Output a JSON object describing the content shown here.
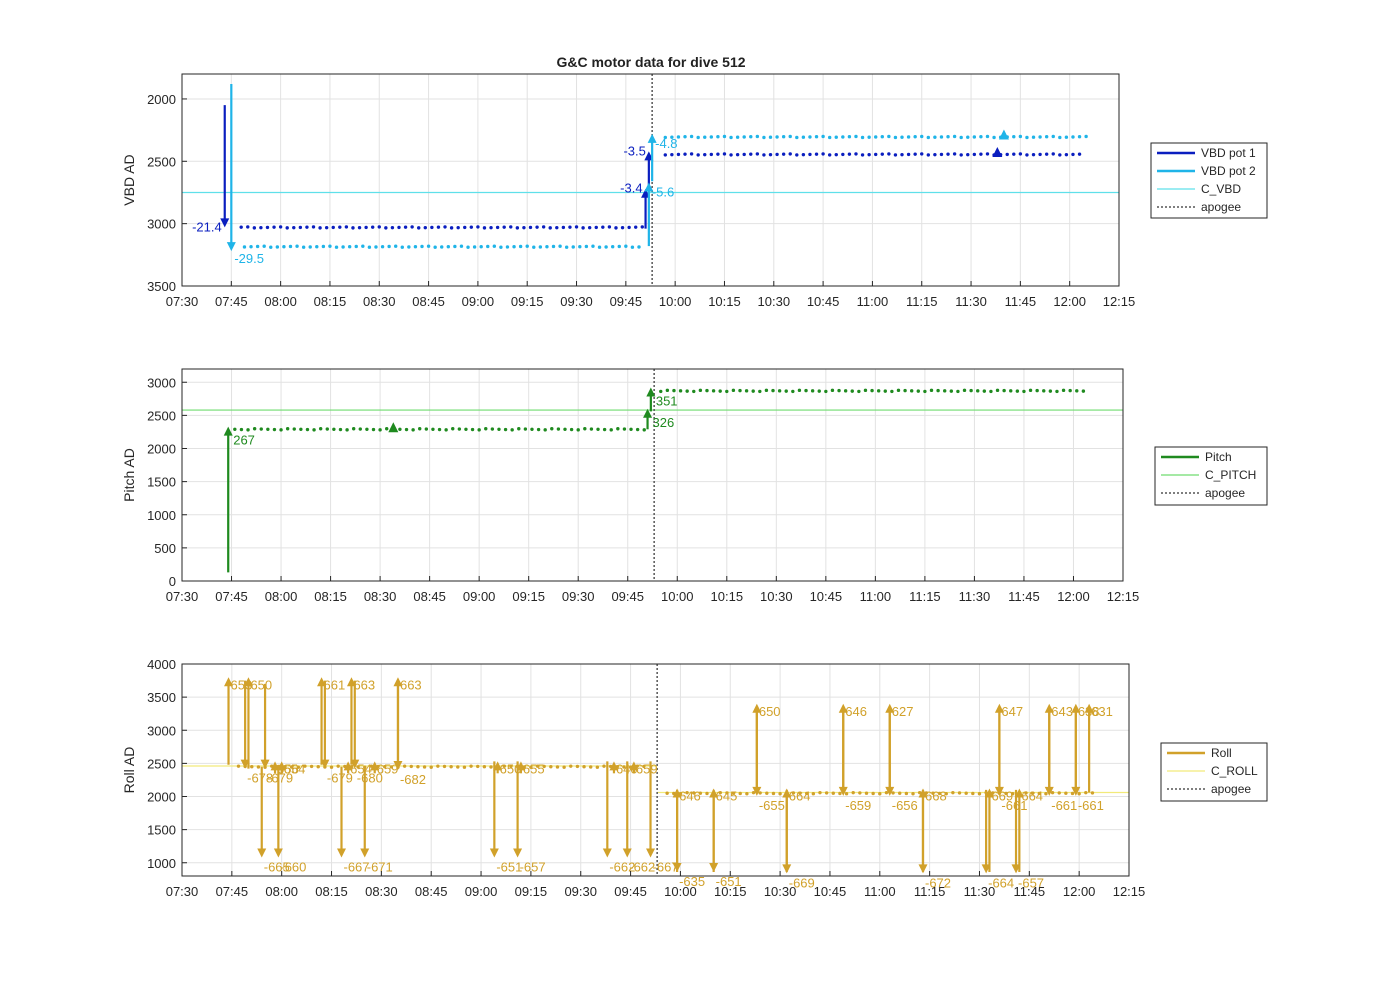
{
  "figure_title": "G&C motor data for dive 512",
  "colors": {
    "vbd1": "#0a1ebf",
    "vbd2": "#1fb4e8",
    "c_vbd": "#5fe0ea",
    "pitch": "#1f8a1f",
    "c_pitch": "#6fdc6f",
    "roll": "#d1a12a",
    "c_roll": "#f2ea7a",
    "apogee": "#555555"
  },
  "chart_data": [
    {
      "type": "scatter",
      "title": "G&C motor data for dive 512",
      "xlabel": "",
      "ylabel": "VBD AD",
      "x_ticks": [
        "07:30",
        "07:45",
        "08:00",
        "08:15",
        "08:30",
        "08:45",
        "09:00",
        "09:15",
        "09:30",
        "09:45",
        "10:00",
        "10:15",
        "10:30",
        "10:45",
        "11:00",
        "11:15",
        "11:30",
        "11:45",
        "12:00",
        "12:15"
      ],
      "xlim": [
        "07:30",
        "12:15"
      ],
      "ylim": [
        1800,
        3500
      ],
      "y_reversed": true,
      "y_ticks": [
        "2000",
        "2500",
        "3000",
        "3500"
      ],
      "grid": true,
      "apogee_x": "09:53",
      "legend": {
        "placement": "outside-right",
        "entries": [
          {
            "label": "VBD pot 1",
            "style": "line",
            "color_key": "vbd1"
          },
          {
            "label": "VBD pot 2",
            "style": "line",
            "color_key": "vbd2"
          },
          {
            "label": "C_VBD",
            "style": "thin",
            "color_key": "c_vbd"
          },
          {
            "label": "apogee",
            "style": "dotted",
            "color_key": "apogee"
          }
        ]
      },
      "hlines": [
        {
          "name": "C_VBD",
          "y": 2750,
          "color_key": "c_vbd"
        }
      ],
      "series": [
        {
          "name": "VBD pot 1",
          "color_key": "vbd1",
          "x_start": "07:48",
          "x_end": "09:50",
          "y": 3030
        },
        {
          "name": "VBD pot 1",
          "color_key": "vbd1",
          "x_start": "09:57",
          "x_end": "12:03",
          "y": 2445
        },
        {
          "name": "VBD pot 2",
          "color_key": "vbd2",
          "x_start": "07:49",
          "x_end": "09:50",
          "y": 3185
        },
        {
          "name": "VBD pot 2",
          "color_key": "vbd2",
          "x_start": "09:57",
          "x_end": "12:05",
          "y": 2305
        }
      ],
      "arrows": [
        {
          "color_key": "vbd1",
          "x": "07:43",
          "y0": 2050,
          "y1": 3030,
          "label": "-21.4",
          "label_side": "left"
        },
        {
          "color_key": "vbd2",
          "x": "07:45",
          "y0": 1880,
          "y1": 3220,
          "label": "-29.5",
          "label_side": "right"
        },
        {
          "color_key": "vbd1",
          "x": "09:51",
          "y0": 3040,
          "y1": 2720,
          "label": "-3.4",
          "label_side": "left"
        },
        {
          "color_key": "vbd1",
          "x": "09:52",
          "y0": 2740,
          "y1": 2420,
          "label": "-3.5",
          "label_side": "left"
        },
        {
          "color_key": "vbd2",
          "x": "09:52",
          "y0": 3180,
          "y1": 2670,
          "label": "-5.6",
          "label_side": "right"
        },
        {
          "color_key": "vbd2",
          "x": "09:53",
          "y0": 2660,
          "y1": 2280,
          "label": "-4.8",
          "label_side": "right"
        }
      ],
      "markers": [
        {
          "color_key": "vbd2",
          "x": "11:40",
          "y": 2285
        },
        {
          "color_key": "vbd1",
          "x": "11:38",
          "y": 2425
        }
      ]
    },
    {
      "type": "scatter",
      "title": "",
      "xlabel": "",
      "ylabel": "Pitch AD",
      "x_ticks": [
        "07:30",
        "07:45",
        "08:00",
        "08:15",
        "08:30",
        "08:45",
        "09:00",
        "09:15",
        "09:30",
        "09:45",
        "10:00",
        "10:15",
        "10:30",
        "10:45",
        "11:00",
        "11:15",
        "11:30",
        "11:45",
        "12:00",
        "12:15"
      ],
      "xlim": [
        "07:30",
        "12:15"
      ],
      "ylim": [
        0,
        3200
      ],
      "y_reversed": false,
      "y_ticks": [
        "0",
        "500",
        "1000",
        "1500",
        "2000",
        "2500",
        "3000"
      ],
      "grid": true,
      "apogee_x": "09:53",
      "legend": {
        "placement": "outside-right",
        "entries": [
          {
            "label": "Pitch",
            "style": "line",
            "color_key": "pitch"
          },
          {
            "label": "C_PITCH",
            "style": "thin",
            "color_key": "c_pitch"
          },
          {
            "label": "apogee",
            "style": "dotted",
            "color_key": "apogee"
          }
        ]
      },
      "hlines": [
        {
          "name": "C_PITCH",
          "y": 2580,
          "color_key": "c_pitch"
        }
      ],
      "series": [
        {
          "name": "Pitch",
          "color_key": "pitch",
          "x_start": "07:46",
          "x_end": "09:51",
          "y": 2290
        },
        {
          "name": "Pitch",
          "color_key": "pitch",
          "x_start": "09:55",
          "x_end": "12:04",
          "y": 2870
        }
      ],
      "arrows": [
        {
          "color_key": "pitch",
          "x": "07:44",
          "y0": 130,
          "y1": 2330,
          "label": "267",
          "label_side": "right-below"
        },
        {
          "color_key": "pitch",
          "x": "09:51",
          "y0": 2290,
          "y1": 2600,
          "label": "326",
          "label_side": "right-below"
        },
        {
          "color_key": "pitch",
          "x": "09:52",
          "y0": 2560,
          "y1": 2920,
          "label": "351",
          "label_side": "right-below"
        }
      ],
      "markers": [
        {
          "color_key": "pitch",
          "x": "08:34",
          "y": 2320
        }
      ]
    },
    {
      "type": "scatter",
      "title": "",
      "xlabel": "",
      "ylabel": "Roll AD",
      "x_ticks": [
        "07:30",
        "07:45",
        "08:00",
        "08:15",
        "08:30",
        "08:45",
        "09:00",
        "09:15",
        "09:30",
        "09:45",
        "10:00",
        "10:15",
        "10:30",
        "10:45",
        "11:00",
        "11:15",
        "11:30",
        "11:45",
        "12:00",
        "12:15"
      ],
      "xlim": [
        "07:30",
        "12:15"
      ],
      "ylim": [
        800,
        4000
      ],
      "y_reversed": false,
      "y_ticks": [
        "1000",
        "1500",
        "2000",
        "2500",
        "3000",
        "3500",
        "4000"
      ],
      "grid": true,
      "apogee_x": "09:53",
      "legend": {
        "placement": "outside-right",
        "entries": [
          {
            "label": "Roll",
            "style": "line",
            "color_key": "roll"
          },
          {
            "label": "C_ROLL",
            "style": "thin",
            "color_key": "c_roll"
          },
          {
            "label": "apogee",
            "style": "dotted",
            "color_key": "apogee"
          }
        ]
      },
      "hlines": [
        {
          "name": "C_ROLL",
          "y": 2460,
          "color_key": "c_roll",
          "x_start": "07:30",
          "x_end": "09:53"
        },
        {
          "name": "C_ROLL",
          "y": 2060,
          "color_key": "c_roll",
          "x_start": "09:53",
          "x_end": "12:15"
        }
      ],
      "series": [
        {
          "name": "Roll",
          "color_key": "roll",
          "x_start": "07:47",
          "x_end": "09:50",
          "y": 2450
        },
        {
          "name": "Roll",
          "color_key": "roll",
          "x_start": "09:56",
          "x_end": "12:04",
          "y": 2050
        }
      ],
      "arrows": [
        {
          "color_key": "roll",
          "x": "07:44",
          "y0": 2480,
          "y1": 3800,
          "label": "653"
        },
        {
          "color_key": "roll",
          "x": "07:49",
          "y0": 3750,
          "y1": 2420,
          "label": "-678"
        },
        {
          "color_key": "roll",
          "x": "07:50",
          "y0": 2420,
          "y1": 3800,
          "label": "650"
        },
        {
          "color_key": "roll",
          "x": "07:54",
          "y0": 2450,
          "y1": 1080,
          "label": "-665"
        },
        {
          "color_key": "roll",
          "x": "07:55",
          "y0": 3700,
          "y1": 2420,
          "label": "-679"
        },
        {
          "color_key": "roll",
          "x": "07:58",
          "y0": 2350,
          "y1": 2530,
          "label": "656"
        },
        {
          "color_key": "roll",
          "x": "07:59",
          "y0": 2450,
          "y1": 1080,
          "label": "-660"
        },
        {
          "color_key": "roll",
          "x": "08:00",
          "y0": 2350,
          "y1": 2530,
          "label": "654"
        },
        {
          "color_key": "roll",
          "x": "08:12",
          "y0": 2480,
          "y1": 3800,
          "label": "661"
        },
        {
          "color_key": "roll",
          "x": "08:13",
          "y0": 3750,
          "y1": 2420,
          "label": "-679"
        },
        {
          "color_key": "roll",
          "x": "08:18",
          "y0": 2450,
          "y1": 1080,
          "label": "-667"
        },
        {
          "color_key": "roll",
          "x": "08:20",
          "y0": 2350,
          "y1": 2530,
          "label": "654"
        },
        {
          "color_key": "roll",
          "x": "08:21",
          "y0": 2480,
          "y1": 3800,
          "label": "663"
        },
        {
          "color_key": "roll",
          "x": "08:22",
          "y0": 3750,
          "y1": 2420,
          "label": "-680"
        },
        {
          "color_key": "roll",
          "x": "08:25",
          "y0": 2450,
          "y1": 1080,
          "label": "-671"
        },
        {
          "color_key": "roll",
          "x": "08:28",
          "y0": 2350,
          "y1": 2530,
          "label": "659"
        },
        {
          "color_key": "roll",
          "x": "08:35",
          "y0": 2480,
          "y1": 3800,
          "label": "663"
        },
        {
          "color_key": "roll",
          "x": "08:35",
          "y0": 3750,
          "y1": 2400,
          "label": "-682"
        },
        {
          "color_key": "roll",
          "x": "09:04",
          "y0": 2530,
          "y1": 1080,
          "label": "-651"
        },
        {
          "color_key": "roll",
          "x": "09:05",
          "y0": 2350,
          "y1": 2530,
          "label": "650"
        },
        {
          "color_key": "roll",
          "x": "09:11",
          "y0": 2530,
          "y1": 1080,
          "label": "-657"
        },
        {
          "color_key": "roll",
          "x": "09:12",
          "y0": 2350,
          "y1": 2530,
          "label": "655"
        },
        {
          "color_key": "roll",
          "x": "09:38",
          "y0": 2530,
          "y1": 1080,
          "label": "-662"
        },
        {
          "color_key": "roll",
          "x": "09:40",
          "y0": 2350,
          "y1": 2530,
          "label": "640"
        },
        {
          "color_key": "roll",
          "x": "09:44",
          "y0": 2530,
          "y1": 1080,
          "label": "-662"
        },
        {
          "color_key": "roll",
          "x": "09:46",
          "y0": 2350,
          "y1": 2530,
          "label": "659"
        },
        {
          "color_key": "roll",
          "x": "09:51",
          "y0": 2530,
          "y1": 1080,
          "label": "-667"
        },
        {
          "color_key": "roll",
          "x": "09:59",
          "y0": 860,
          "y1": 2120,
          "label": "646"
        },
        {
          "color_key": "roll",
          "x": "09:59",
          "y0": 2100,
          "y1": 860,
          "label": "-635"
        },
        {
          "color_key": "roll",
          "x": "10:10",
          "y0": 860,
          "y1": 2120,
          "label": "645"
        },
        {
          "color_key": "roll",
          "x": "10:10",
          "y0": 2100,
          "y1": 860,
          "label": "-651"
        },
        {
          "color_key": "roll",
          "x": "10:23",
          "y0": 2060,
          "y1": 3400,
          "label": "650"
        },
        {
          "color_key": "roll",
          "x": "10:23",
          "y0": 3350,
          "y1": 2010,
          "label": "-655"
        },
        {
          "color_key": "roll",
          "x": "10:32",
          "y0": 860,
          "y1": 2120,
          "label": "664"
        },
        {
          "color_key": "roll",
          "x": "10:32",
          "y0": 2100,
          "y1": 840,
          "label": "-669"
        },
        {
          "color_key": "roll",
          "x": "10:49",
          "y0": 2060,
          "y1": 3400,
          "label": "646"
        },
        {
          "color_key": "roll",
          "x": "10:49",
          "y0": 3350,
          "y1": 2010,
          "label": "-659"
        },
        {
          "color_key": "roll",
          "x": "11:03",
          "y0": 2060,
          "y1": 3400,
          "label": "627"
        },
        {
          "color_key": "roll",
          "x": "11:03",
          "y0": 3350,
          "y1": 2010,
          "label": "-656"
        },
        {
          "color_key": "roll",
          "x": "11:13",
          "y0": 860,
          "y1": 2120,
          "label": "668"
        },
        {
          "color_key": "roll",
          "x": "11:13",
          "y0": 2100,
          "y1": 840,
          "label": "-672"
        },
        {
          "color_key": "roll",
          "x": "11:32",
          "y0": 2100,
          "y1": 840,
          "label": "-664"
        },
        {
          "color_key": "roll",
          "x": "11:33",
          "y0": 860,
          "y1": 2120,
          "label": "669"
        },
        {
          "color_key": "roll",
          "x": "11:36",
          "y0": 2060,
          "y1": 3400,
          "label": "647"
        },
        {
          "color_key": "roll",
          "x": "11:36",
          "y0": 3350,
          "y1": 2010,
          "label": "-661"
        },
        {
          "color_key": "roll",
          "x": "11:41",
          "y0": 2100,
          "y1": 840,
          "label": "-657"
        },
        {
          "color_key": "roll",
          "x": "11:42",
          "y0": 860,
          "y1": 2120,
          "label": "664"
        },
        {
          "color_key": "roll",
          "x": "11:51",
          "y0": 2060,
          "y1": 3400,
          "label": "643"
        },
        {
          "color_key": "roll",
          "x": "11:51",
          "y0": 3350,
          "y1": 2010,
          "label": "-661"
        },
        {
          "color_key": "roll",
          "x": "11:59",
          "y0": 2060,
          "y1": 3400,
          "label": "638"
        },
        {
          "color_key": "roll",
          "x": "11:59",
          "y0": 3350,
          "y1": 2010,
          "label": "-661"
        },
        {
          "color_key": "roll",
          "x": "12:03",
          "y0": 2060,
          "y1": 3400,
          "label": "631"
        }
      ],
      "markers": []
    }
  ]
}
